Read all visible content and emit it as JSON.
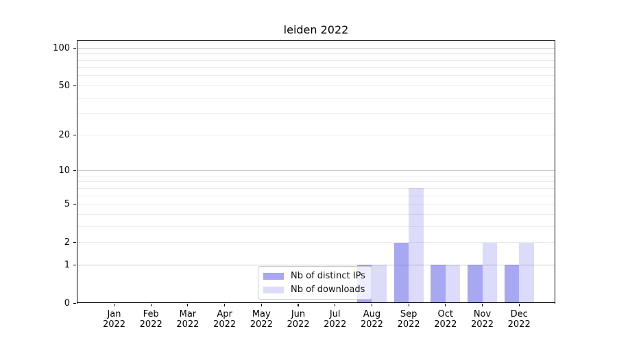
{
  "title": "leiden 2022",
  "colors": {
    "bar_distinct_ips": "rgba(80,80,230,0.5)",
    "bar_downloads": "rgba(80,80,230,0.2)",
    "grid_major": "#c9c9c9",
    "grid_minor": "#ebebeb",
    "axis": "#000000",
    "legend_border": "#c9c9c9",
    "legend_bg": "rgba(255,255,255,0.8)",
    "text": "#000000"
  },
  "legend": {
    "items": [
      {
        "label": "Nb of distinct IPs",
        "color": "rgba(80,80,230,0.5)"
      },
      {
        "label": "Nb of downloads",
        "color": "rgba(80,80,230,0.2)"
      }
    ]
  },
  "chart_data": {
    "type": "bar",
    "title": "leiden 2022",
    "categories": [
      "Jan 2022",
      "Feb 2022",
      "Mar 2022",
      "Apr 2022",
      "May 2022",
      "Jun 2022",
      "Jul 2022",
      "Aug 2022",
      "Sep 2022",
      "Oct 2022",
      "Nov 2022",
      "Dec 2022"
    ],
    "x_tick_months": [
      "Jan",
      "Feb",
      "Mar",
      "Apr",
      "May",
      "Jun",
      "Jul",
      "Aug",
      "Sep",
      "Oct",
      "Nov",
      "Dec"
    ],
    "x_tick_year": "2022",
    "series": [
      {
        "name": "Nb of distinct IPs",
        "color": "rgba(80,80,230,0.5)",
        "values": [
          0,
          0,
          0,
          0,
          0,
          0,
          0,
          1,
          2,
          1,
          1,
          1
        ]
      },
      {
        "name": "Nb of downloads",
        "color": "rgba(80,80,230,0.2)",
        "values": [
          0,
          0,
          0,
          0,
          0,
          0,
          0,
          1,
          7,
          1,
          2,
          2
        ]
      }
    ],
    "xlabel": "",
    "ylabel": "",
    "yscale": "log1p",
    "ylim": [
      0,
      115
    ],
    "y_tick_labels": [
      100,
      50,
      20,
      10,
      5,
      2,
      1,
      0
    ],
    "y_major_gridlines": [
      1,
      10,
      100
    ],
    "y_minor_gridlines": [
      2,
      3,
      4,
      5,
      6,
      7,
      8,
      9,
      20,
      30,
      40,
      50,
      60,
      70,
      80,
      90
    ],
    "grid": true,
    "legend_position": "lower-center-inside"
  }
}
